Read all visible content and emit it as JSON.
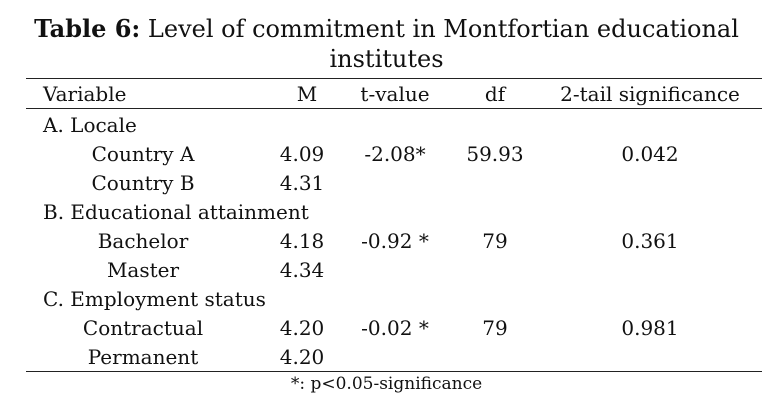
{
  "title": {
    "label": "Table 6:",
    "text_line1": " Level of commitment in Montfortian educational",
    "text_line2": "institutes"
  },
  "columns": [
    "Variable",
    "M",
    "t-value",
    "df",
    "2-tail significance"
  ],
  "groups": [
    {
      "label": "A. Locale",
      "rows": [
        {
          "name": "Country A",
          "m": "4.09",
          "t": "-2.08*",
          "df": "59.93",
          "sig": "0.042"
        },
        {
          "name": "Country B",
          "m": "4.31",
          "t": "",
          "df": "",
          "sig": ""
        }
      ]
    },
    {
      "label": "B. Educational attainment",
      "rows": [
        {
          "name": "Bachelor",
          "m": "4.18",
          "t": "-0.92 *",
          "df": "79",
          "sig": "0.361"
        },
        {
          "name": "Master",
          "m": "4.34",
          "t": "",
          "df": "",
          "sig": ""
        }
      ]
    },
    {
      "label": "C. Employment status",
      "rows": [
        {
          "name": "Contractual",
          "m": "4.20",
          "t": "-0.02 *",
          "df": "79",
          "sig": "0.981"
        },
        {
          "name": "Permanent",
          "m": "4.20",
          "t": "",
          "df": "",
          "sig": ""
        }
      ]
    }
  ],
  "footnote": "*: p<0.05-significance"
}
